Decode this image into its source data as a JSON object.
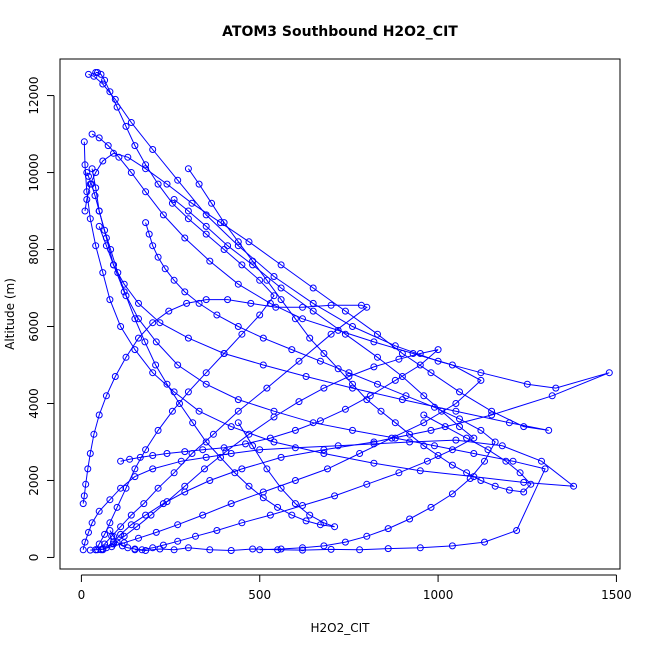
{
  "chart_data": {
    "type": "scatter",
    "title": "ATOM3 Southbound H2O2_CIT",
    "xlabel": "H2O2_CIT",
    "ylabel": "Altitude (m)",
    "xlim": [
      -60,
      1510
    ],
    "ylim": [
      -300,
      12950
    ],
    "xticks": [
      0,
      500,
      1000,
      1500
    ],
    "yticks": [
      0,
      2000,
      4000,
      6000,
      8000,
      10000,
      12000
    ],
    "xtick_labels": [
      "0",
      "500",
      "1000",
      "1500"
    ],
    "ytick_labels": [
      "0",
      "2000",
      "4000",
      "6000",
      "8000",
      "10000",
      "12000"
    ],
    "grid": false,
    "legend": "none",
    "color": "#0000ff",
    "marker": "open-circle",
    "connected": true,
    "series": [
      {
        "x": [
          5,
          10,
          20,
          30,
          50,
          80,
          110,
          150,
          200,
          280,
          350,
          420,
          500,
          600,
          720,
          820,
          920,
          1050,
          1180,
          1290,
          1380,
          1240,
          1100,
          950,
          820,
          680,
          540,
          420,
          330,
          260,
          200,
          150,
          110,
          80,
          60,
          40,
          25,
          15,
          10,
          8
        ],
        "y": [
          200,
          400,
          650,
          900,
          1200,
          1500,
          1800,
          2100,
          2300,
          2500,
          2600,
          2700,
          2800,
          2850,
          2900,
          2950,
          3000,
          3050,
          2900,
          2500,
          1850,
          1950,
          2100,
          2250,
          2450,
          2700,
          3000,
          3400,
          3800,
          4300,
          4800,
          5400,
          6000,
          6700,
          7400,
          8100,
          8800,
          9500,
          10200,
          10800
        ]
      },
      {
        "x": [
          20,
          35,
          60,
          95,
          140,
          200,
          270,
          350,
          440,
          540,
          650,
          760,
          880,
          1000,
          1120,
          1250,
          1330,
          1480,
          1320,
          1150,
          980,
          820,
          680,
          560,
          450,
          360,
          290,
          230,
          180,
          140,
          110,
          90,
          70,
          55
        ],
        "y": [
          12550,
          12500,
          12300,
          11900,
          11300,
          10600,
          9800,
          8900,
          8100,
          7300,
          6600,
          6000,
          5500,
          5100,
          4800,
          4500,
          4400,
          4800,
          4200,
          3700,
          3300,
          3000,
          2800,
          2600,
          2300,
          2000,
          1700,
          1400,
          1100,
          850,
          600,
          400,
          250,
          200
        ]
      },
      {
        "x": [
          150,
          180,
          220,
          260,
          300,
          360,
          420,
          480,
          550,
          620,
          700,
          780,
          860,
          950,
          1040,
          1130,
          1220,
          1300,
          1210,
          1100,
          990,
          880,
          760,
          650,
          540,
          440,
          350,
          270,
          210,
          160,
          120,
          90,
          70,
          50,
          40,
          30
        ],
        "y": [
          200,
          180,
          220,
          200,
          250,
          200,
          180,
          220,
          200,
          190,
          210,
          200,
          230,
          250,
          300,
          400,
          700,
          2300,
          2500,
          2700,
          2900,
          3100,
          3300,
          3500,
          3800,
          4100,
          4500,
          5000,
          5600,
          6200,
          6900,
          7600,
          8300,
          9000,
          9600,
          10100
        ]
      },
      {
        "x": [
          10,
          15,
          25,
          40,
          60,
          90,
          130,
          180,
          240,
          310,
          390,
          470,
          560,
          650,
          740,
          830,
          900,
          980,
          1060,
          1150,
          1240,
          1310,
          1200,
          1050,
          900,
          760,
          630,
          510,
          400,
          300,
          220,
          160,
          120,
          90,
          70,
          50
        ],
        "y": [
          9000,
          9300,
          9700,
          10000,
          10300,
          10500,
          10400,
          10100,
          9700,
          9200,
          8700,
          8200,
          7600,
          7000,
          6400,
          5800,
          5300,
          4800,
          4300,
          3800,
          3400,
          3300,
          3500,
          3800,
          4100,
          4400,
          4700,
          5000,
          5300,
          5700,
          6100,
          6600,
          7100,
          7600,
          8100,
          8600
        ]
      },
      {
        "x": [
          30,
          50,
          75,
          105,
          140,
          180,
          230,
          290,
          360,
          440,
          530,
          620,
          720,
          820,
          930,
          1040,
          1120,
          1050,
          960,
          870,
          780,
          690,
          600,
          510,
          420,
          340,
          270,
          210,
          160,
          120,
          85,
          60,
          40,
          25
        ],
        "y": [
          11000,
          10900,
          10700,
          10400,
          10000,
          9500,
          8900,
          8300,
          7700,
          7100,
          6600,
          6200,
          5900,
          5600,
          5300,
          5000,
          4600,
          4000,
          3500,
          3100,
          2700,
          2300,
          2000,
          1700,
          1400,
          1100,
          850,
          650,
          500,
          380,
          280,
          220,
          200,
          190
        ]
      },
      {
        "x": [
          260,
          300,
          350,
          410,
          480,
          560,
          650,
          740,
          830,
          900,
          960,
          1010,
          1060,
          1100,
          1040,
          970,
          890,
          800,
          710,
          620,
          530,
          450,
          380,
          320,
          270,
          230,
          200,
          170,
          150,
          130,
          115,
          100,
          90,
          80
        ],
        "y": [
          9300,
          9000,
          8600,
          8100,
          7600,
          7000,
          6400,
          5800,
          5200,
          4700,
          4200,
          3800,
          3400,
          3100,
          2800,
          2500,
          2200,
          1900,
          1600,
          1350,
          1100,
          900,
          700,
          550,
          420,
          320,
          250,
          200,
          220,
          250,
          300,
          400,
          550,
          700
        ]
      },
      {
        "x": [
          5,
          8,
          12,
          18,
          25,
          35,
          50,
          70,
          95,
          125,
          160,
          200,
          245,
          295,
          350,
          410,
          475,
          545,
          620,
          700,
          785,
          800,
          700,
          610,
          520,
          440,
          370,
          310,
          260,
          215,
          175,
          140,
          110,
          85,
          65,
          45
        ],
        "y": [
          1400,
          1600,
          1900,
          2300,
          2700,
          3200,
          3700,
          4200,
          4700,
          5200,
          5700,
          6100,
          6400,
          6600,
          6700,
          6700,
          6600,
          6500,
          6500,
          6550,
          6550,
          6500,
          5800,
          5100,
          4400,
          3800,
          3200,
          2700,
          2200,
          1800,
          1400,
          1100,
          800,
          550,
          350,
          200
        ]
      },
      {
        "x": [
          60,
          90,
          120,
          155,
          195,
          240,
          290,
          345,
          405,
          470,
          540,
          610,
          680,
          750,
          820,
          890,
          950,
          1000,
          950,
          880,
          810,
          740,
          670,
          600,
          530,
          460,
          400,
          340,
          290,
          240,
          200,
          165,
          135,
          110
        ],
        "y": [
          200,
          350,
          550,
          800,
          1100,
          1450,
          1850,
          2300,
          2750,
          3200,
          3650,
          4050,
          4400,
          4700,
          4950,
          5150,
          5300,
          5400,
          5000,
          4600,
          4200,
          3850,
          3550,
          3300,
          3100,
          2950,
          2850,
          2800,
          2750,
          2700,
          2650,
          2600,
          2550,
          2500
        ]
      },
      {
        "x": [
          40,
          45,
          55,
          65,
          80,
          100,
          125,
          150,
          180,
          215,
          255,
          300,
          350,
          400,
          450,
          500,
          540,
          500,
          450,
          400,
          350,
          300,
          255,
          215,
          180,
          150,
          125,
          100,
          80,
          65,
          50,
          40
        ],
        "y": [
          12600,
          12600,
          12550,
          12400,
          12100,
          11700,
          11200,
          10700,
          10200,
          9700,
          9200,
          8800,
          8400,
          8000,
          7600,
          7200,
          6800,
          6300,
          5800,
          5300,
          4800,
          4300,
          3800,
          3300,
          2800,
          2300,
          1800,
          1300,
          900,
          600,
          350,
          200
        ]
      },
      {
        "x": [
          500,
          560,
          620,
          680,
          740,
          800,
          860,
          920,
          980,
          1040,
          1090,
          1130,
          1160,
          1120,
          1060,
          990,
          910,
          830,
          750,
          670,
          590,
          510,
          440,
          380,
          330,
          290,
          260,
          235,
          215,
          200,
          190,
          180
        ],
        "y": [
          200,
          220,
          250,
          300,
          400,
          550,
          750,
          1000,
          1300,
          1650,
          2050,
          2500,
          3000,
          3300,
          3600,
          3900,
          4200,
          4500,
          4800,
          5100,
          5400,
          5700,
          6000,
          6300,
          6600,
          6900,
          7200,
          7500,
          7800,
          8100,
          8400,
          8700
        ]
      },
      {
        "x": [
          15,
          20,
          28,
          38,
          50,
          65,
          82,
          102,
          125,
          150,
          178,
          208,
          240,
          275,
          312,
          350,
          390,
          430,
          470,
          510,
          550,
          590,
          630,
          670,
          710,
          680,
          640,
          600,
          560,
          520,
          480,
          440
        ],
        "y": [
          10000,
          9900,
          9700,
          9400,
          9000,
          8500,
          8000,
          7400,
          6800,
          6200,
          5600,
          5000,
          4500,
          4000,
          3500,
          3000,
          2600,
          2200,
          1850,
          1550,
          1300,
          1100,
          950,
          850,
          800,
          900,
          1100,
          1400,
          1800,
          2300,
          2900,
          3500
        ]
      },
      {
        "x": [
          300,
          330,
          365,
          400,
          440,
          480,
          520,
          560,
          600,
          640,
          680,
          720,
          760,
          800,
          840,
          880,
          920,
          960,
          1000,
          1040,
          1080,
          1120,
          1160,
          1200,
          1240,
          1260,
          1230,
          1190,
          1140,
          1080,
          1020,
          960
        ],
        "y": [
          10100,
          9700,
          9200,
          8700,
          8200,
          7700,
          7200,
          6700,
          6200,
          5700,
          5300,
          4900,
          4500,
          4100,
          3800,
          3500,
          3200,
          2900,
          2650,
          2400,
          2200,
          2000,
          1850,
          1750,
          1700,
          1900,
          2200,
          2500,
          2800,
          3100,
          3400,
          3700
        ]
      }
    ]
  }
}
